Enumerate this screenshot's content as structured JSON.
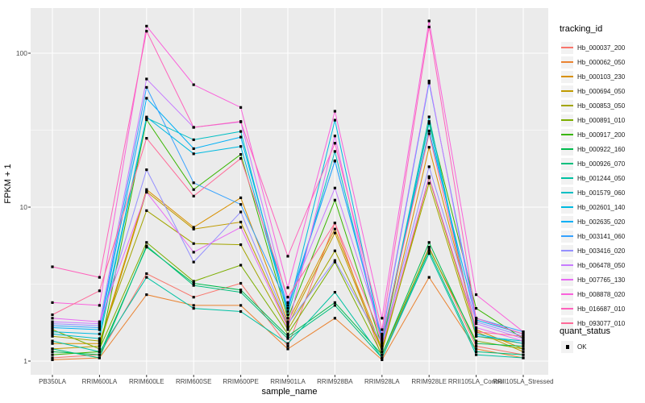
{
  "figure": {
    "xlabel": "sample_name",
    "ylabel": "FPKM + 1",
    "legend_title": "tracking_id",
    "quant_legend_title": "quant_status",
    "quant_ok_label": "OK"
  },
  "chart_data": {
    "type": "line",
    "title": "",
    "xlabel": "sample_name",
    "ylabel": "FPKM + 1",
    "y_scale": "log10",
    "yticks": [
      1,
      10,
      100
    ],
    "ylim": [
      0.82,
      200
    ],
    "grid": "white major and minor on grey panel",
    "panel_bg": "#EBEBEB",
    "point_marker": "small black square (quant_status = OK)",
    "legend_position": "right",
    "categories": [
      "PB350LA",
      "RRIM600LA",
      "RRIM600LE",
      "RRIM600SE",
      "RRIM600PE",
      "RRIM901LA",
      "RRIM928BA",
      "RRIM928LA",
      "RRIM928LE",
      "RRII105LA_Control",
      "RRII105LA_Stressed"
    ],
    "series": [
      {
        "name": "Hb_000037_200",
        "color": "#F8766D",
        "values": [
          1.05,
          1.1,
          3.7,
          2.6,
          3.2,
          1.25,
          7.9,
          1.05,
          5.5,
          1.25,
          1.1
        ]
      },
      {
        "name": "Hb_000062_050",
        "color": "#EA8331",
        "values": [
          1.02,
          1.05,
          2.7,
          2.3,
          2.3,
          1.2,
          1.9,
          1.02,
          3.5,
          1.2,
          1.05
        ]
      },
      {
        "name": "Hb_000103_230",
        "color": "#D89000",
        "values": [
          1.3,
          1.3,
          13.0,
          7.4,
          11.5,
          1.8,
          7.2,
          1.2,
          24.5,
          1.6,
          1.2
        ]
      },
      {
        "name": "Hb_000694_050",
        "color": "#C09B00",
        "values": [
          1.2,
          1.25,
          12.6,
          7.2,
          8.0,
          1.7,
          6.8,
          1.15,
          15.5,
          1.55,
          1.15
        ]
      },
      {
        "name": "Hb_000853_050",
        "color": "#A3A500",
        "values": [
          1.45,
          1.35,
          9.5,
          5.8,
          5.7,
          1.6,
          5.2,
          1.2,
          14.3,
          1.45,
          1.3
        ]
      },
      {
        "name": "Hb_000891_010",
        "color": "#7CAE00",
        "values": [
          1.6,
          1.2,
          5.9,
          3.3,
          4.2,
          1.5,
          4.4,
          1.1,
          5.4,
          1.35,
          1.2
        ]
      },
      {
        "name": "Hb_000917_200",
        "color": "#39B600",
        "values": [
          1.1,
          1.15,
          37.0,
          13.0,
          22.0,
          1.9,
          11.1,
          1.25,
          36.0,
          2.2,
          1.4
        ]
      },
      {
        "name": "Hb_000922_160",
        "color": "#00BB4E",
        "values": [
          1.15,
          1.1,
          5.5,
          3.2,
          2.9,
          1.45,
          2.4,
          1.1,
          5.9,
          1.3,
          1.25
        ]
      },
      {
        "name": "Hb_000926_070",
        "color": "#00BF7D",
        "values": [
          1.2,
          1.05,
          5.6,
          3.1,
          2.8,
          1.4,
          2.3,
          1.05,
          5.2,
          1.15,
          1.1
        ]
      },
      {
        "name": "Hb_001244_050",
        "color": "#00C1A3",
        "values": [
          1.35,
          1.15,
          3.5,
          2.2,
          2.1,
          1.3,
          2.8,
          1.05,
          5.0,
          1.1,
          1.05
        ]
      },
      {
        "name": "Hb_001579_060",
        "color": "#00BFC4",
        "values": [
          1.5,
          1.4,
          38.0,
          27.4,
          31.0,
          2.0,
          23.0,
          1.3,
          38.6,
          1.45,
          1.35
        ]
      },
      {
        "name": "Hb_002601_140",
        "color": "#00BAE0",
        "values": [
          1.55,
          1.5,
          38.5,
          22.2,
          24.8,
          2.1,
          36.7,
          1.35,
          35.0,
          1.5,
          1.3
        ]
      },
      {
        "name": "Hb_002635_020",
        "color": "#00B0F6",
        "values": [
          1.65,
          1.6,
          51.0,
          24.0,
          28.5,
          2.2,
          20.0,
          1.4,
          31.3,
          1.85,
          1.5
        ]
      },
      {
        "name": "Hb_003141_060",
        "color": "#35A2FF",
        "values": [
          1.7,
          1.65,
          60.0,
          14.4,
          10.4,
          2.3,
          19.9,
          1.45,
          64.0,
          1.9,
          1.55
        ]
      },
      {
        "name": "Hb_003416_020",
        "color": "#9590FF",
        "values": [
          1.75,
          1.7,
          17.5,
          4.4,
          9.3,
          1.75,
          4.5,
          1.3,
          18.3,
          1.8,
          1.45
        ]
      },
      {
        "name": "Hb_006478_050",
        "color": "#C77CFF",
        "values": [
          1.8,
          1.75,
          68.0,
          33.0,
          35.8,
          2.4,
          13.3,
          1.5,
          66.0,
          1.75,
          1.4
        ]
      },
      {
        "name": "Hb_007765_130",
        "color": "#E76BF3",
        "values": [
          1.9,
          1.8,
          12.5,
          5.1,
          7.4,
          1.65,
          29.0,
          1.25,
          15.8,
          1.65,
          1.35
        ]
      },
      {
        "name": "Hb_008878_020",
        "color": "#FA62DB",
        "values": [
          2.4,
          2.3,
          150.0,
          62.4,
          44.4,
          3.0,
          42.0,
          1.9,
          162.0,
          2.7,
          1.55
        ]
      },
      {
        "name": "Hb_016687_010",
        "color": "#FF62BC",
        "values": [
          4.1,
          3.5,
          139.0,
          33.0,
          36.0,
          4.8,
          26.0,
          1.6,
          148.0,
          1.9,
          1.5
        ]
      },
      {
        "name": "Hb_093077_010",
        "color": "#FF6A98",
        "values": [
          2.0,
          2.86,
          28.0,
          11.8,
          20.7,
          2.6,
          7.9,
          1.4,
          30.0,
          1.55,
          1.45
        ]
      }
    ],
    "quant_status_legend": {
      "title": "quant_status",
      "entries": [
        "OK"
      ]
    }
  }
}
